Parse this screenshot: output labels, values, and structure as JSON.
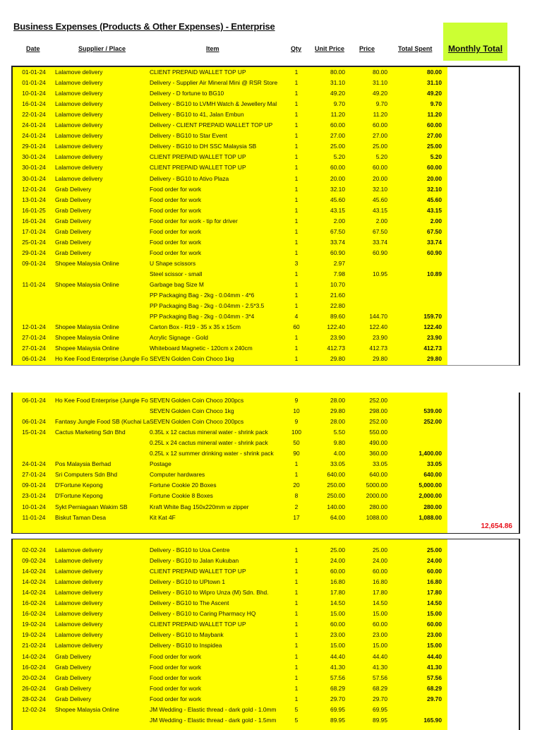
{
  "title": "Business Expenses  (Products & Other Expenses) - Enterprise",
  "headers": {
    "date": "Date",
    "supplier": "Supplier / Place",
    "item": "Item",
    "qty": "Qty",
    "unit_price": "Unit Price",
    "price": "Price",
    "total_spent": "Total Spent",
    "monthly_total": "Monthly Total"
  },
  "colors": {
    "row_fill": "#ffff00",
    "monthly_header_fill": "#ccff33",
    "monthly_total_text": "#e8101a"
  },
  "blocks": [
    {
      "rows": [
        [
          "01-01-24",
          "Lalamove delivery",
          "CLIENT PREPAID WALLET TOP UP",
          "1",
          "80.00",
          "80.00",
          "80.00"
        ],
        [
          "01-01-24",
          "Lalamove delivery",
          "Delivery - Supplier Air Mineral Mini @ RSR Store",
          "1",
          "31.10",
          "31.10",
          "31.10"
        ],
        [
          "10-01-24",
          "Lalamove delivery",
          "Delivery - D fortune to BG10",
          "1",
          "49.20",
          "49.20",
          "49.20"
        ],
        [
          "16-01-24",
          "Lalamove delivery",
          "Delivery - BG10 to LVMH Watch & Jewellery Mal",
          "1",
          "9.70",
          "9.70",
          "9.70"
        ],
        [
          "22-01-24",
          "Lalamove delivery",
          "Delivery - BG10 to 41, Jalan Embun",
          "1",
          "11.20",
          "11.20",
          "11.20"
        ],
        [
          "24-01-24",
          "Lalamove delivery",
          "Delivery - CLIENT PREPAID WALLET TOP UP",
          "1",
          "60.00",
          "60.00",
          "60.00"
        ],
        [
          "24-01-24",
          "Lalamove delivery",
          "Delivery - BG10 to Star Event",
          "1",
          "27.00",
          "27.00",
          "27.00"
        ],
        [
          "29-01-24",
          "Lalamove delivery",
          "Delivery - BG10 to DH SSC Malaysia SB",
          "1",
          "25.00",
          "25.00",
          "25.00"
        ],
        [
          "30-01-24",
          "Lalamove delivery",
          "CLIENT PREPAID WALLET TOP UP",
          "1",
          "5.20",
          "5.20",
          "5.20"
        ],
        [
          "30-01-24",
          "Lalamove delivery",
          "CLIENT PREPAID WALLET TOP UP",
          "1",
          "60.00",
          "60.00",
          "60.00"
        ],
        [
          "30-01-24",
          "Lalamove delivery",
          "Delivery - BG10 to Ativo Plaza",
          "1",
          "20.00",
          "20.00",
          "20.00"
        ],
        [
          "12-01-24",
          "Grab Delivery",
          "Food order for work",
          "1",
          "32.10",
          "32.10",
          "32.10"
        ],
        [
          "13-01-24",
          "Grab Delivery",
          "Food order for work",
          "1",
          "45.60",
          "45.60",
          "45.60"
        ],
        [
          "16-01-25",
          "Grab Delivery",
          "Food order for work",
          "1",
          "43.15",
          "43.15",
          "43.15"
        ],
        [
          "16-01-24",
          "Grab Delivery",
          "Food order for work - tip for driver",
          "1",
          "2.00",
          "2.00",
          "2.00"
        ],
        [
          "17-01-24",
          "Grab Delivery",
          "Food order for work",
          "1",
          "67.50",
          "67.50",
          "67.50"
        ],
        [
          "25-01-24",
          "Grab Delivery",
          "Food order for work",
          "1",
          "33.74",
          "33.74",
          "33.74"
        ],
        [
          "29-01-24",
          "Grab Delivery",
          "Food order for work",
          "1",
          "60.90",
          "60.90",
          "60.90"
        ],
        [
          "09-01-24",
          "Shopee Malaysia Online",
          "U Shape scissors",
          "3",
          "2.97",
          "",
          ""
        ],
        [
          "",
          "",
          "Steel scissor - small",
          "1",
          "7.98",
          "10.95",
          "10.89"
        ],
        [
          "11-01-24",
          "Shopee Malaysia Online",
          "Garbage bag Size M",
          "1",
          "10.70",
          "",
          ""
        ],
        [
          "",
          "",
          "PP Packaging Bag - 2kg - 0.04mm - 4*6",
          "1",
          "21.60",
          "",
          ""
        ],
        [
          "",
          "",
          "PP Packaging Bag - 2kg - 0.04mm - 2.5*3.5",
          "1",
          "22.80",
          "",
          ""
        ],
        [
          "",
          "",
          "PP Packaging Bag - 2kg - 0.04mm - 3*4",
          "4",
          "89.60",
          "144.70",
          "159.70"
        ],
        [
          "12-01-24",
          "Shopee Malaysia Online",
          "Carton Box - R19 - 35 x 35 x 15cm",
          "60",
          "122.40",
          "122.40",
          "122.40"
        ],
        [
          "27-01-24",
          "Shopee Malaysia Online",
          "Acrylic Signage - Gold",
          "1",
          "23.90",
          "23.90",
          "23.90"
        ],
        [
          "27-01-24",
          "Shopee Malaysia Online",
          "Whiteboard Magnetic - 120cm x 240cm",
          "1",
          "412.73",
          "412.73",
          "412.73"
        ],
        [
          "06-01-24",
          "Ho Kee Food Enterprise (Jungle Fo",
          "SEVEN Golden Coin Choco 1kg",
          "1",
          "29.80",
          "29.80",
          "29.80"
        ]
      ]
    },
    {
      "rows": [
        [
          "06-01-24",
          "Ho Kee Food Enterprise (Jungle Fo",
          "SEVEN Golden Coin Choco 200pcs",
          "9",
          "28.00",
          "252.00",
          ""
        ],
        [
          "",
          "",
          "SEVEN Golden Coin Choco 1kg",
          "10",
          "29.80",
          "298.00",
          "539.00"
        ],
        [
          "06-01-24",
          "Fantasy Jungle Food SB (Kuchai La",
          "SEVEN Golden Coin Choco 200pcs",
          "9",
          "28.00",
          "252.00",
          "252.00"
        ],
        [
          "15-01-24",
          "Cactus Marketing Sdn Bhd",
          "0.35L x 12 cactus mineral water - shrink pack",
          "100",
          "5.50",
          "550.00",
          ""
        ],
        [
          "",
          "",
          "0.25L x 24 cactus mineral water - shrink pack",
          "50",
          "9.80",
          "490.00",
          ""
        ],
        [
          "",
          "",
          "0.25L x 12 summer drinking water - shrink pack",
          "90",
          "4.00",
          "360.00",
          "1,400.00"
        ],
        [
          "24-01-24",
          "Pos Malaysia Berhad",
          "Postage",
          "1",
          "33.05",
          "33.05",
          "33.05"
        ],
        [
          "27-01-24",
          "Sri Computers Sdn Bhd",
          "Computer hardwares",
          "1",
          "640.00",
          "640.00",
          "640.00"
        ],
        [
          "09-01-24",
          "D'Fortune Kepong",
          "Fortune Cookie 20 Boxes",
          "20",
          "250.00",
          "5000.00",
          "5,000.00"
        ],
        [
          "23-01-24",
          "D'Fortune Kepong",
          "Fortune Cookie 8 Boxes",
          "8",
          "250.00",
          "2000.00",
          "2,000.00"
        ],
        [
          "10-01-24",
          "Sykt Perniagaan Wakim SB",
          "Kraft White Bag 150x220mm w zipper",
          "2",
          "140.00",
          "280.00",
          "280.00"
        ],
        [
          "11-01-24",
          "Biskut Taman Desa",
          "Kit Kat 4F",
          "17",
          "64.00",
          "1088.00",
          "1,088.00"
        ]
      ],
      "monthly_total": "12,654.86"
    },
    {
      "rows": [
        [
          "02-02-24",
          "Lalamove delivery",
          "Delivery - BG10 to Uoa Centre",
          "1",
          "25.00",
          "25.00",
          "25.00"
        ],
        [
          "09-02-24",
          "Lalamove delivery",
          "Delivery - BG10 to Jalan Kukuban",
          "1",
          "24.00",
          "24.00",
          "24.00"
        ],
        [
          "14-02-24",
          "Lalamove delivery",
          "CLIENT PREPAID WALLET TOP UP",
          "1",
          "60.00",
          "60.00",
          "60.00"
        ],
        [
          "14-02-24",
          "Lalamove delivery",
          "Delivery - BG10 to UPtown 1",
          "1",
          "16.80",
          "16.80",
          "16.80"
        ],
        [
          "14-02-24",
          "Lalamove delivery",
          "Delivery - BG10 to Wipro Unza (M) Sdn. Bhd.",
          "1",
          "17.80",
          "17.80",
          "17.80"
        ],
        [
          "16-02-24",
          "Lalamove delivery",
          "Delivery - BG10 to The Ascent",
          "1",
          "14.50",
          "14.50",
          "14.50"
        ],
        [
          "16-02-24",
          "Lalamove delivery",
          "Delivery - BG10 to Caring Pharmacy HQ",
          "1",
          "15.00",
          "15.00",
          "15.00"
        ],
        [
          "19-02-24",
          "Lalamove delivery",
          "CLIENT PREPAID WALLET TOP UP",
          "1",
          "60.00",
          "60.00",
          "60.00"
        ],
        [
          "19-02-24",
          "Lalamove delivery",
          "Delivery - BG10 to Maybank",
          "1",
          "23.00",
          "23.00",
          "23.00"
        ],
        [
          "21-02-24",
          "Lalamove delivery",
          "Delivery - BG10 to Inspidea",
          "1",
          "15.00",
          "15.00",
          "15.00"
        ],
        [
          "14-02-24",
          "Grab Delivery",
          "Food order for work",
          "1",
          "44.40",
          "44.40",
          "44.40"
        ],
        [
          "16-02-24",
          "Grab Delivery",
          "Food order for work",
          "1",
          "41.30",
          "41.30",
          "41.30"
        ],
        [
          "20-02-24",
          "Grab Delivery",
          "Food order for work",
          "1",
          "57.56",
          "57.56",
          "57.56"
        ],
        [
          "26-02-24",
          "Grab Delivery",
          "Food order for work",
          "1",
          "68.29",
          "68.29",
          "68.29"
        ],
        [
          "28-02-24",
          "Grab Delivery",
          "Food order for work",
          "1",
          "29.70",
          "29.70",
          "29.70"
        ],
        [
          "12-02-24",
          "Shopee Malaysia Online",
          "JM Wedding - Elastic thread - dark gold - 1.0mm",
          "5",
          "69.95",
          "69.95",
          ""
        ],
        [
          "",
          "",
          "JM Wedding - Elastic thread - dark gold - 1.5mm",
          "5",
          "89.95",
          "89.95",
          "165.90"
        ]
      ]
    }
  ]
}
